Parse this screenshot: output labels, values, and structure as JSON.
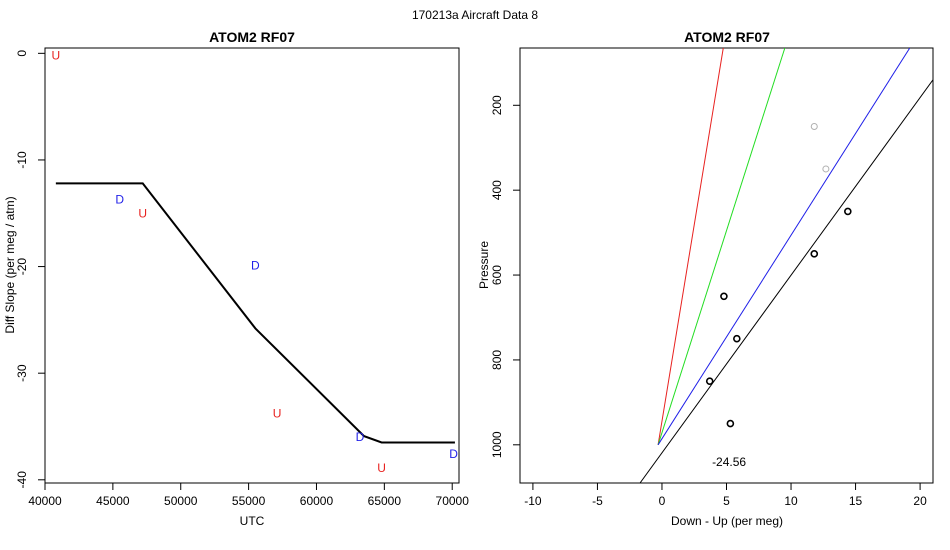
{
  "figure": {
    "supertitle": "170213a    Aircraft Data 8"
  },
  "colors": {
    "U": "#e8211f",
    "D": "#1f1fe8",
    "black": "#000000",
    "red": "#e8211f",
    "green": "#22dd22",
    "blue": "#1f1fe8",
    "gray": "#b0b0b0"
  },
  "chart_data": [
    {
      "type": "line",
      "title": "ATOM2 RF07",
      "xlabel": "UTC",
      "ylabel": "Diff Slope (per meg / atm)",
      "xlim": [
        40000,
        70500
      ],
      "ylim": [
        -40.3,
        0.5
      ],
      "xticks": [
        40000,
        45000,
        50000,
        55000,
        60000,
        65000,
        70000
      ],
      "yticks": [
        0,
        -10,
        -20,
        -30,
        -40
      ],
      "grid": false,
      "series": [
        {
          "x": [
            40800,
            47200,
            55500,
            63500,
            64800,
            70200
          ],
          "y": [
            -12.2,
            -12.2,
            -25.8,
            -35.9,
            -36.5,
            -36.5
          ],
          "color": "black"
        }
      ],
      "points": [
        {
          "label": "U",
          "x": 40800,
          "y": -0.2
        },
        {
          "label": "D",
          "x": 45500,
          "y": -13.7
        },
        {
          "label": "U",
          "x": 47200,
          "y": -15.0
        },
        {
          "label": "D",
          "x": 55500,
          "y": -19.9
        },
        {
          "label": "U",
          "x": 57100,
          "y": -33.8
        },
        {
          "label": "D",
          "x": 63200,
          "y": -36.0
        },
        {
          "label": "U",
          "x": 64800,
          "y": -38.9
        },
        {
          "label": "D",
          "x": 70100,
          "y": -37.6
        }
      ]
    },
    {
      "type": "scatter",
      "title": "ATOM2 RF07",
      "xlabel": "Down - Up (per meg)",
      "ylabel": "Pressure",
      "xlim": [
        -11,
        21
      ],
      "ylim": [
        1090,
        65
      ],
      "xticks": [
        -10,
        -5,
        0,
        5,
        10,
        15,
        20
      ],
      "yticks": [
        200,
        400,
        600,
        800,
        1000
      ],
      "y_reversed": true,
      "grid": false,
      "points": [
        {
          "x": 11.8,
          "y": 250,
          "color": "gray"
        },
        {
          "x": 12.7,
          "y": 350,
          "color": "gray"
        },
        {
          "x": 14.4,
          "y": 450,
          "color": "black"
        },
        {
          "x": 11.8,
          "y": 550,
          "color": "black"
        },
        {
          "x": 4.8,
          "y": 650,
          "color": "black"
        },
        {
          "x": 5.8,
          "y": 750,
          "color": "black"
        },
        {
          "x": 3.7,
          "y": 850,
          "color": "black"
        },
        {
          "x": 5.3,
          "y": 950,
          "color": "black"
        }
      ],
      "lines": [
        {
          "color": "red",
          "x": [
            -0.3,
            4.75
          ],
          "y": [
            1000,
            65
          ]
        },
        {
          "color": "green",
          "x": [
            -0.3,
            9.52
          ],
          "y": [
            1000,
            65
          ]
        },
        {
          "color": "blue",
          "x": [
            -0.3,
            19.2
          ],
          "y": [
            1000,
            65
          ]
        },
        {
          "color": "black",
          "x": [
            -1.7,
            21.0
          ],
          "y": [
            1090,
            140
          ]
        }
      ],
      "annotation": "-24.56",
      "annotation_pos": {
        "x": 5.2,
        "y": 1040
      }
    }
  ]
}
